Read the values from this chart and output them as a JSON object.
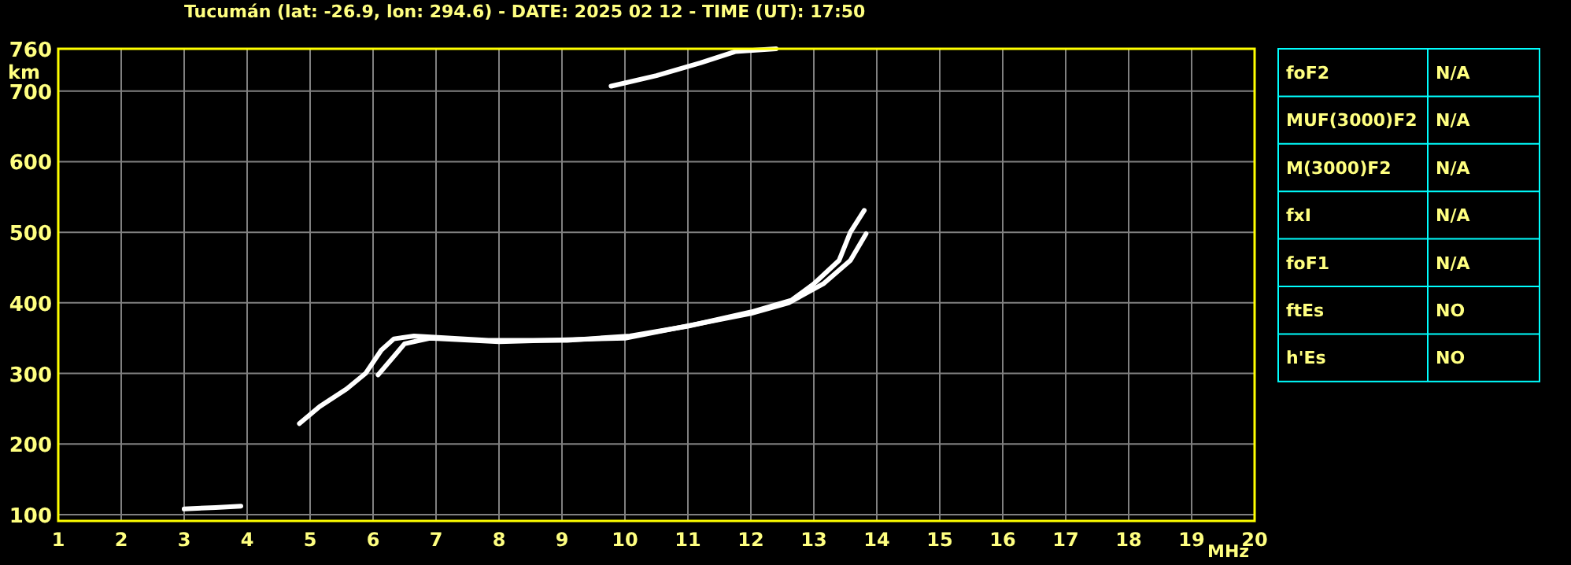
{
  "chart_data": [
    {
      "type": "line",
      "title": "Tucumán (lat: -26.9, lon: 294.6) - DATE: 2025 02 12 - TIME (UT): 17:50",
      "xlabel": "MHz",
      "ylabel": "km",
      "xlim": [
        1,
        20
      ],
      "ylim": [
        91,
        760
      ],
      "xticks": [
        1,
        2,
        3,
        4,
        5,
        6,
        7,
        8,
        9,
        10,
        11,
        12,
        13,
        14,
        15,
        16,
        17,
        18,
        19,
        20
      ],
      "yticks": [
        100,
        200,
        300,
        400,
        500,
        600,
        700,
        760
      ],
      "grid": true,
      "marker": "none",
      "line_style": "solid",
      "series": [
        {
          "color": "#ffffff",
          "x": [
            4.83,
            5.15,
            5.58,
            5.88,
            6.13,
            6.33,
            6.65,
            7.83,
            9.08,
            10.08,
            11.0,
            12.0,
            12.65,
            13.0,
            13.4,
            13.58,
            13.8
          ],
          "values": [
            229,
            253,
            278,
            300,
            333,
            349,
            353,
            347,
            347,
            353,
            367,
            387,
            404,
            427,
            460,
            500,
            531
          ]
        },
        {
          "color": "#ffffff",
          "x": [
            6.08,
            6.5,
            6.9,
            8.0,
            10.0,
            12.0,
            12.6,
            13.15,
            13.58,
            13.83
          ],
          "values": [
            298,
            342,
            350,
            345,
            350,
            385,
            400,
            427,
            460,
            498
          ]
        },
        {
          "color": "#ffffff",
          "x": [
            3.0,
            3.5,
            3.9
          ],
          "values": [
            108,
            110,
            112
          ]
        },
        {
          "color": "#ffffff",
          "x": [
            9.78,
            10.5,
            11.2,
            11.75,
            12.4
          ],
          "values": [
            707,
            722,
            740,
            756,
            760
          ]
        }
      ]
    },
    {
      "type": "other",
      "y_categories": [
        "foF2",
        "MUF(3000)F2",
        "M(3000)F2",
        "fxI",
        "foF1",
        "ftEs",
        "h'Es"
      ],
      "cell_labels": [
        [
          "N/A"
        ],
        [
          "N/A"
        ],
        [
          "N/A"
        ],
        [
          "N/A"
        ],
        [
          "N/A"
        ],
        [
          "NO"
        ],
        [
          "NO"
        ]
      ]
    }
  ]
}
